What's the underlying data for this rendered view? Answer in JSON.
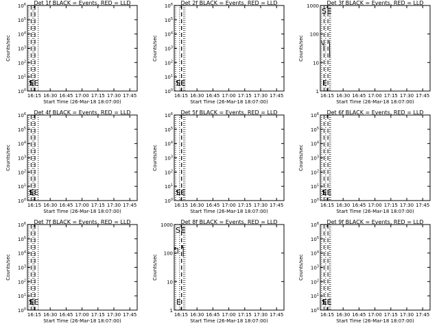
{
  "figure": {
    "time_ticks": [
      "16:15",
      "16:30",
      "16:45",
      "17:00",
      "17:15",
      "17:30",
      "17:45"
    ],
    "xlabel": "Start Time (26-Mar-18 18:07:00)",
    "ylabel": "Counts/sec",
    "marker_s": "S",
    "marker_e": "E",
    "line_color": "#000000",
    "background": "#ffffff"
  },
  "chart_data": [
    {
      "id": "det1",
      "type": "line",
      "title": "Det 1f BLACK = Events, RED = LLD",
      "yscale": "log",
      "ylim": [
        1,
        1000000
      ],
      "y_ticks": [
        "10^0",
        "10^1",
        "10^2",
        "10^3",
        "10^4",
        "10^5",
        "10^6"
      ],
      "x_range_min": [
        15,
        1245
      ],
      "dotted_lines_min": [
        30,
        75,
        90,
        135
      ],
      "dashed_lines_min": [
        56.5,
        100
      ],
      "s_marker_min": 57,
      "e_marker_min": 115,
      "series": []
    },
    {
      "id": "det2",
      "type": "line",
      "title": "Det 2f BLACK = Events, RED = LLD",
      "yscale": "log",
      "ylim": [
        1,
        1000000
      ],
      "y_ticks": [
        "10^0",
        "10^1",
        "10^2",
        "10^3",
        "10^4",
        "10^5",
        "10^6"
      ],
      "x_range_min": [
        15,
        1245
      ],
      "dotted_lines_min": [
        30,
        75,
        120,
        135
      ],
      "dashed_lines_min": [
        97,
        97.5
      ],
      "s_marker_min": 57,
      "e_marker_min": 115,
      "series": []
    },
    {
      "id": "det3",
      "type": "line",
      "title": "Det 3f BLACK = Events, RED = LLD",
      "yscale": "log",
      "ylim": [
        1,
        1000
      ],
      "y_ticks": [
        "1",
        "10",
        "100",
        "1000"
      ],
      "x_range_min": [
        15,
        1245
      ],
      "dotted_lines_min": [
        30,
        75,
        117,
        130
      ],
      "dashed_lines_min": [
        56.5,
        100
      ],
      "s_marker_min": 57,
      "e_marker_min": 115,
      "series": [
        {
          "x": [
            27,
            30,
            33,
            36,
            40,
            44,
            48,
            52,
            55,
            55.5
          ],
          "y": [
            60,
            54,
            50,
            46,
            44,
            43,
            43,
            44,
            45,
            25
          ]
        },
        {
          "x": [
            114,
            115,
            117,
            118.5,
            119,
            120
          ],
          "y": [
            60,
            52,
            48,
            44,
            30,
            15
          ]
        }
      ]
    },
    {
      "id": "det4",
      "type": "line",
      "title": "Det 4f BLACK = Events, RED = LLD",
      "yscale": "log",
      "ylim": [
        1,
        1000000
      ],
      "y_ticks": [
        "10^0",
        "10^1",
        "10^2",
        "10^3",
        "10^4",
        "10^5",
        "10^6"
      ],
      "x_range_min": [
        15,
        1245
      ],
      "dotted_lines_min": [
        30,
        75,
        90,
        135
      ],
      "dashed_lines_min": [
        56.5,
        100
      ],
      "s_marker_min": 57,
      "e_marker_min": 115,
      "series": []
    },
    {
      "id": "det5",
      "type": "line",
      "title": "Det 5f BLACK = Events, RED = LLD",
      "yscale": "log",
      "ylim": [
        1,
        1000000
      ],
      "y_ticks": [
        "10^0",
        "10^1",
        "10^2",
        "10^3",
        "10^4",
        "10^5",
        "10^6"
      ],
      "x_range_min": [
        15,
        1245
      ],
      "dotted_lines_min": [
        30,
        75,
        120,
        135
      ],
      "dashed_lines_min": [
        97,
        97.5
      ],
      "s_marker_min": 57,
      "e_marker_min": 115,
      "series": []
    },
    {
      "id": "det6",
      "type": "line",
      "title": "Det 6f BLACK = Events, RED = LLD",
      "yscale": "log",
      "ylim": [
        1,
        1000000
      ],
      "y_ticks": [
        "10^0",
        "10^1",
        "10^2",
        "10^3",
        "10^4",
        "10^5",
        "10^6"
      ],
      "x_range_min": [
        15,
        1245
      ],
      "dotted_lines_min": [
        30,
        75,
        117,
        130
      ],
      "dashed_lines_min": [
        56.5,
        100
      ],
      "s_marker_min": 57,
      "e_marker_min": 115,
      "series": []
    },
    {
      "id": "det7",
      "type": "line",
      "title": "Det 7f BLACK = Events, RED = LLD",
      "yscale": "log",
      "ylim": [
        1,
        1000000
      ],
      "y_ticks": [
        "10^0",
        "10^1",
        "10^2",
        "10^3",
        "10^4",
        "10^5",
        "10^6"
      ],
      "x_range_min": [
        15,
        1245
      ],
      "dotted_lines_min": [
        30,
        75,
        90,
        135
      ],
      "dashed_lines_min": [
        56.5,
        100
      ],
      "s_marker_min": 57,
      "e_marker_min": 115,
      "series": []
    },
    {
      "id": "det8",
      "type": "line",
      "title": "Det 8f BLACK = Events, RED = LLD",
      "yscale": "log",
      "ylim": [
        1,
        1000
      ],
      "y_ticks": [
        "1",
        "10",
        "100",
        "1000"
      ],
      "x_range_min": [
        15,
        1245
      ],
      "dotted_lines_min": [
        30,
        75,
        120,
        135
      ],
      "dashed_lines_min": [
        97,
        97.5
      ],
      "s_marker_min": 57,
      "e_marker_min": 115,
      "series": [
        {
          "x": [
            23,
            24,
            27,
            32,
            38,
            44,
            50,
            54,
            55,
            55.5
          ],
          "y": [
            130,
            160,
            150,
            145,
            145,
            145,
            145,
            145,
            145,
            95
          ]
        },
        {
          "x": [
            107,
            108,
            110,
            113,
            115,
            116,
            116.5
          ],
          "y": [
            150,
            190,
            170,
            160,
            155,
            150,
            75
          ]
        }
      ]
    },
    {
      "id": "det9",
      "type": "line",
      "title": "Det 9f BLACK = Events, RED = LLD",
      "yscale": "log",
      "ylim": [
        1,
        1000000
      ],
      "y_ticks": [
        "10^0",
        "10^1",
        "10^2",
        "10^3",
        "10^4",
        "10^5",
        "10^6"
      ],
      "x_range_min": [
        15,
        1245
      ],
      "dotted_lines_min": [
        30,
        75,
        117,
        130
      ],
      "dashed_lines_min": [
        56.5,
        100
      ],
      "s_marker_min": 57,
      "e_marker_min": 115,
      "series": []
    }
  ]
}
